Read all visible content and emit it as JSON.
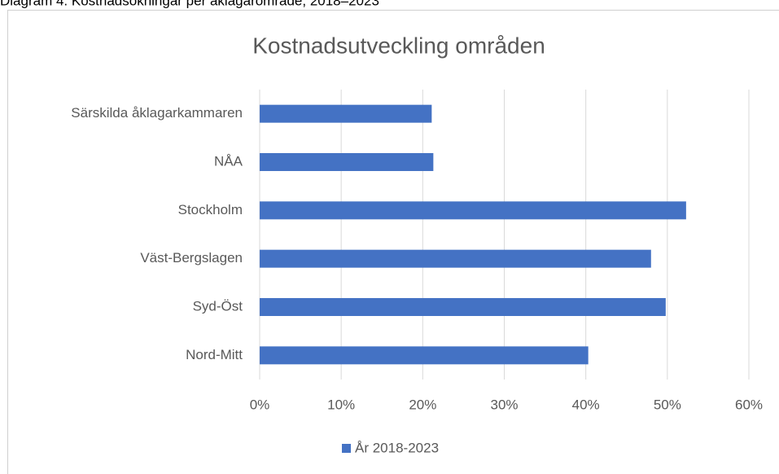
{
  "caption": "Diagram 4. Kostnadsökningar per åklagarområde, 2018–2023",
  "chart_data": {
    "type": "hbar",
    "title": "Kostnadsutveckling områden",
    "categories": [
      "Särskilda åklagarkammaren",
      "NÅA",
      "Stockholm",
      "Väst-Bergslagen",
      "Syd-Öst",
      "Nord-Mitt"
    ],
    "series": [
      {
        "name": "År 2018-2023",
        "color": "#4472c4",
        "values": [
          21.1,
          21.3,
          52.3,
          48.0,
          49.8,
          40.3
        ]
      }
    ],
    "xlim": [
      0,
      60
    ],
    "xticks": [
      {
        "value": 0,
        "label": "0%"
      },
      {
        "value": 10,
        "label": "10%"
      },
      {
        "value": 20,
        "label": "20%"
      },
      {
        "value": 30,
        "label": "30%"
      },
      {
        "value": 40,
        "label": "40%"
      },
      {
        "value": 50,
        "label": "50%"
      },
      {
        "value": 60,
        "label": "60%"
      }
    ],
    "grid": true,
    "legend": "bottom"
  }
}
